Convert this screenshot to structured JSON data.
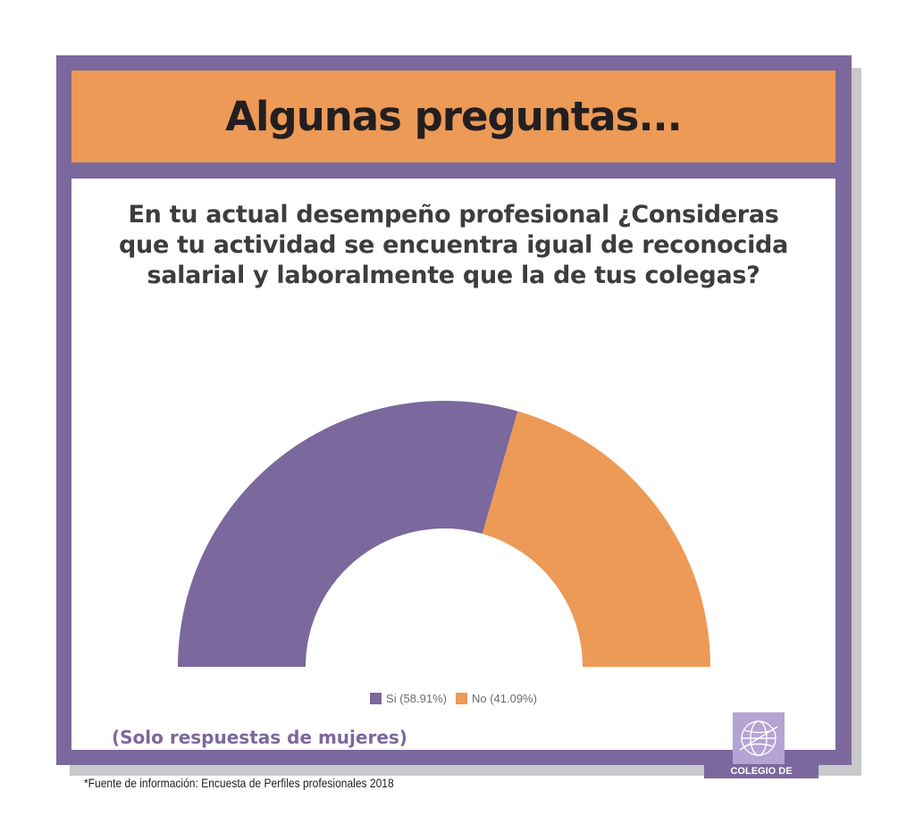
{
  "header": {
    "title": "Algunas preguntas..."
  },
  "question": {
    "line1": "En tu actual desempeño profesional ¿Consideras",
    "line2": "que tu actividad se encuentra igual de reconocida",
    "line3": "salarial y laboralmente que la de tus colegas?"
  },
  "colors": {
    "frame": "#7b689d",
    "header": "#ec9a56",
    "si": "#7b689d",
    "no": "#ec9a56"
  },
  "chart_data": {
    "type": "pie",
    "subtype": "half-donut",
    "categories": [
      "Si",
      "No"
    ],
    "values": [
      58.91,
      41.09
    ],
    "legend": [
      "Si (58.91%)",
      "No (41.09%)"
    ],
    "legend_position": "bottom",
    "colors": [
      "#7b689d",
      "#ec9a56"
    ]
  },
  "note": "(Solo respuestas de mujeres)",
  "source": "*Fuente de información: Encuesta de Perfiles profesionales 2018",
  "logo": {
    "text": "COLEGIO DE GEÓGRAFOS",
    "icon": "globe-icon"
  }
}
